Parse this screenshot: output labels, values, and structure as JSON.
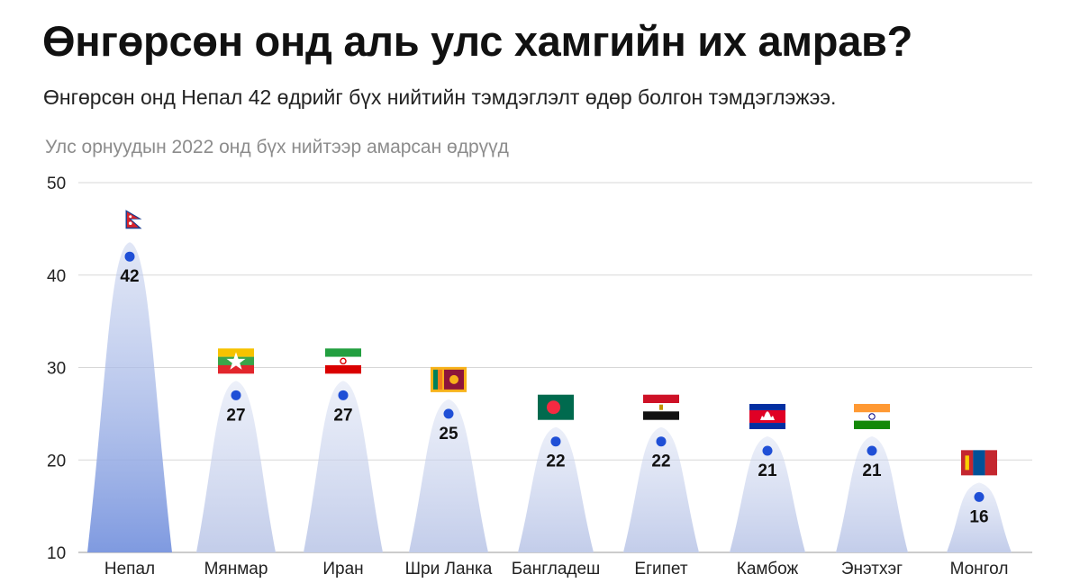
{
  "header": {
    "title": "Өнгөрсөн онд аль улс хамгийн их амрав?",
    "subtitle": "Өнгөрсөн онд Непал 42 өдрийг бүх нийтийн тэмдэглэлт өдөр болгон тэмдэглэжээ.",
    "axis_caption": "Улс орнуудын 2022 онд бүх нийтээр амарсан өдрүүд"
  },
  "colors": {
    "point": "#1f4fd6",
    "peak_top": "#c9d3ee",
    "peak_bottom_highlight": "#7f9ae0",
    "peak_bottom": "#c3cdea",
    "grid": "#d7d7d7"
  },
  "chart_data": {
    "type": "area",
    "title": "",
    "ylabel": "Улс орнуудын 2022 онд бүх нийтээр амарсан өдрүүд",
    "xlabel": "",
    "ylim": [
      10,
      50
    ],
    "yticks": [
      10,
      20,
      30,
      40,
      50
    ],
    "grid": true,
    "legend": "none",
    "categories": [
      "Непал",
      "Мянмар",
      "Иран",
      "Шри Ланка",
      "Бангладеш",
      "Египет",
      "Камбож",
      "Энэтхэг",
      "Монгол"
    ],
    "values": [
      42,
      27,
      27,
      25,
      22,
      22,
      21,
      21,
      16
    ],
    "flags": [
      "nepal-flag-icon",
      "myanmar-flag-icon",
      "iran-flag-icon",
      "sri-lanka-flag-icon",
      "bangladesh-flag-icon",
      "egypt-flag-icon",
      "cambodia-flag-icon",
      "india-flag-icon",
      "mongolia-flag-icon"
    ]
  }
}
